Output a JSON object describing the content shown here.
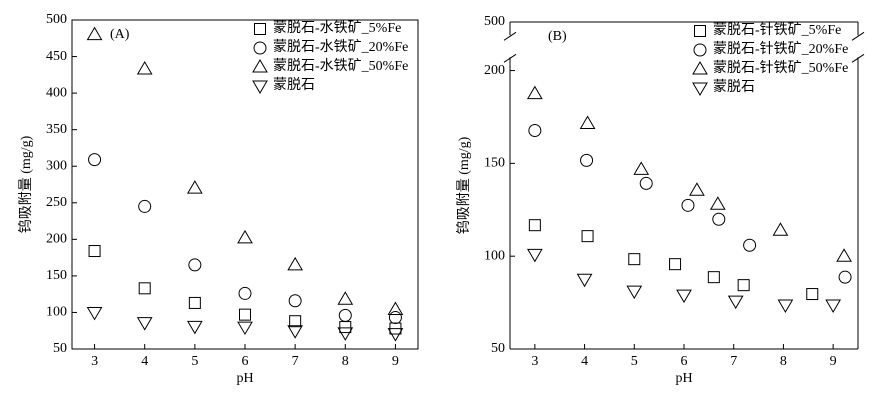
{
  "chart_data": [
    {
      "type": "scatter",
      "panel_label": "(A)",
      "x_label": "pH",
      "y_label": "钨吸附量 (mg/g)",
      "xlim": [
        2.55,
        9.45
      ],
      "xticks": [
        3,
        4,
        5,
        6,
        7,
        8,
        9
      ],
      "ylim": [
        50,
        500
      ],
      "yticks": [
        50,
        100,
        150,
        200,
        250,
        300,
        350,
        400,
        450,
        500
      ],
      "series": [
        {
          "name": "蒙脱石-水铁矿_5%Fe",
          "marker": "square",
          "color": "#000000",
          "x": [
            3,
            4,
            5,
            6,
            7,
            8,
            9
          ],
          "values": [
            184,
            133,
            113,
            97,
            88,
            80,
            78
          ]
        },
        {
          "name": "蒙脱石-水铁矿_20%Fe",
          "marker": "circle",
          "color": "#000000",
          "x": [
            3,
            4,
            5,
            6,
            7,
            8,
            9
          ],
          "values": [
            309,
            245,
            165,
            126,
            116,
            96,
            93
          ]
        },
        {
          "name": "蒙脱石-水铁矿_50%Fe",
          "marker": "triangle-up",
          "color": "#000000",
          "x": [
            3,
            4,
            5,
            6,
            7,
            8,
            9
          ],
          "values": [
            480,
            433,
            270,
            202,
            165,
            118,
            104
          ]
        },
        {
          "name": "蒙脱石",
          "marker": "triangle-down",
          "color": "#000000",
          "x": [
            3,
            4,
            5,
            6,
            7,
            8,
            9
          ],
          "values": [
            100,
            86,
            81,
            80,
            75,
            72,
            71
          ]
        }
      ]
    },
    {
      "type": "scatter",
      "panel_label": "(B)",
      "x_label": "pH",
      "y_label": "钨吸附量 (mg/g)",
      "xlim": [
        2.5,
        9.5
      ],
      "xticks": [
        3,
        4,
        5,
        6,
        7,
        8,
        9
      ],
      "ylim": [
        50,
        500
      ],
      "yticks": [
        50,
        100,
        150,
        200,
        500
      ],
      "y_break": [
        205,
        495
      ],
      "series": [
        {
          "name": "蒙脱石-针铁矿_5%Fe",
          "marker": "square",
          "color": "#000000",
          "x": [
            3,
            4.06,
            5,
            5.82,
            6.6,
            7.2,
            8.58
          ],
          "values": [
            116.7,
            110.8,
            98.4,
            95.7,
            88.7,
            84.4,
            79.6
          ]
        },
        {
          "name": "蒙脱石-针铁矿_20%Fe",
          "marker": "circle",
          "color": "#000000",
          "x": [
            3,
            4.04,
            5.24,
            6.08,
            6.7,
            7.32,
            9.24
          ],
          "values": [
            167.7,
            151.6,
            139.2,
            127.4,
            119.9,
            105.9,
            88.7
          ]
        },
        {
          "name": "蒙脱石-针铁矿_50%Fe",
          "marker": "triangle-up",
          "color": "#000000",
          "x": [
            3,
            4.06,
            5.14,
            6.26,
            6.68,
            7.94,
            9.22
          ],
          "values": [
            187.6,
            171.5,
            146.8,
            135.5,
            128,
            114,
            100
          ]
        },
        {
          "name": "蒙脱石",
          "marker": "triangle-down",
          "color": "#000000",
          "x": [
            3,
            4,
            5,
            6,
            7.04,
            8.04,
            9
          ],
          "values": [
            101,
            87.6,
            81.2,
            79,
            75.8,
            73.7,
            73.7
          ]
        }
      ]
    }
  ]
}
